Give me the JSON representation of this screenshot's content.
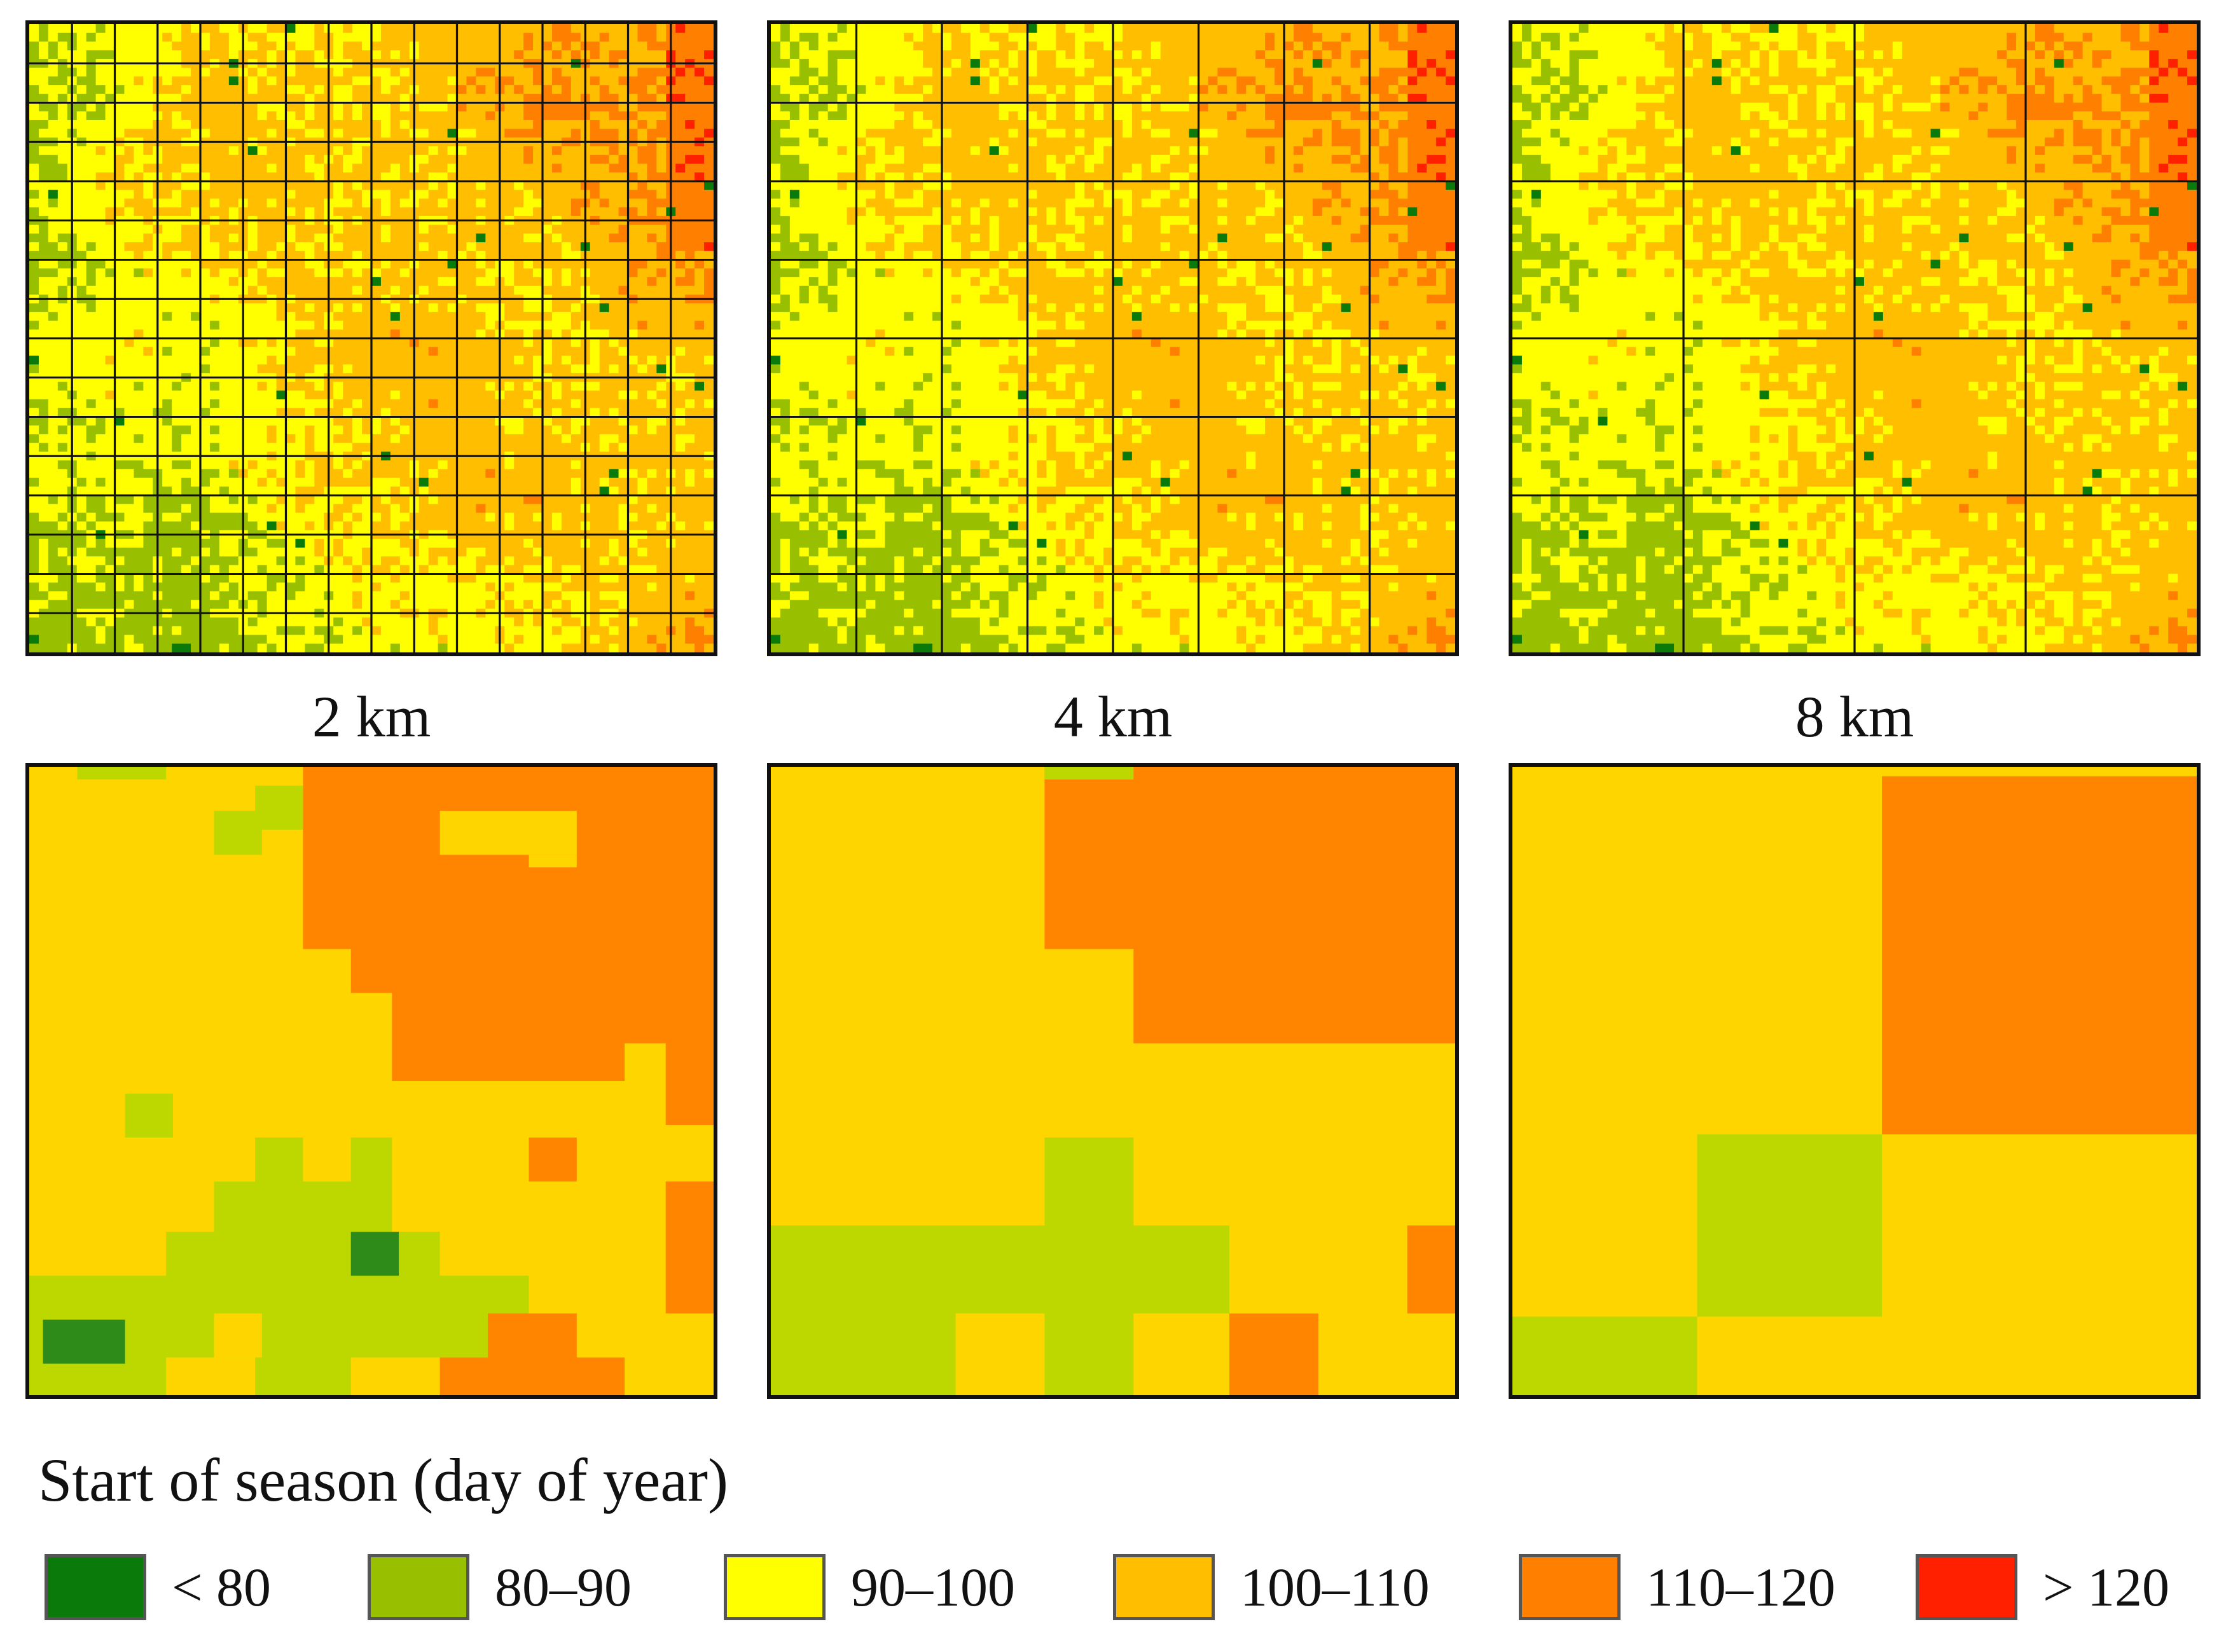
{
  "figure": {
    "resolution_labels": [
      "2 km",
      "4 km",
      "8 km"
    ]
  },
  "legend": {
    "title": "Start of season (day of year)",
    "classes": [
      {
        "label": "< 80",
        "color": "#0a7a0a"
      },
      {
        "label": "80–90",
        "color": "#99c000"
      },
      {
        "label": "90–100",
        "color": "#ffff00"
      },
      {
        "label": "100–110",
        "color": "#ffbf00"
      },
      {
        "label": "110–120",
        "color": "#ff8000"
      },
      {
        "label": "> 120",
        "color": "#ff2000"
      }
    ]
  },
  "aggregated_colors": {
    "dark_green": "#2e8b1a",
    "light_green": "#bcd800",
    "yellow": "#ffd500",
    "orange": "#ff8500"
  }
}
